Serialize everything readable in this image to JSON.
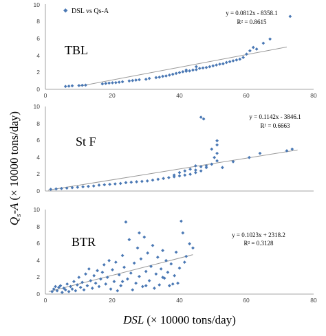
{
  "chart_data": {
    "type": "scatter",
    "xlabel_var": "DSL",
    "xlabel_unit": "(× 10000 tons/day)",
    "ylabel_var": "Q",
    "ylabel_sub": "s",
    "ylabel_rest": "-A",
    "ylabel_unit": "(× 10000 tons/day)",
    "marker_color": "#4a78b4",
    "line_color": "#999999",
    "legend_label": "DSL vs Qs-A",
    "panels": [
      {
        "label": "TBL",
        "equation": "y = 0.0812x - 8358.1",
        "r2": "R² = 0.8615",
        "xlim": [
          0,
          80
        ],
        "ylim": [
          0,
          10
        ],
        "xticks": [
          "0",
          "20",
          "40",
          "60",
          "80"
        ],
        "yticks": [
          "0",
          "2",
          "4",
          "6",
          "8",
          "10"
        ],
        "trend": [
          [
            10.5,
            0.4
          ],
          [
            72,
            5.05
          ]
        ],
        "points": [
          [
            6,
            0.35
          ],
          [
            7,
            0.38
          ],
          [
            8,
            0.42
          ],
          [
            10,
            0.45
          ],
          [
            11,
            0.48
          ],
          [
            12,
            0.5
          ],
          [
            17,
            0.65
          ],
          [
            18,
            0.7
          ],
          [
            19,
            0.75
          ],
          [
            20,
            0.78
          ],
          [
            21,
            0.8
          ],
          [
            22,
            0.85
          ],
          [
            23,
            0.9
          ],
          [
            25,
            1.0
          ],
          [
            26,
            1.05
          ],
          [
            27,
            1.1
          ],
          [
            28,
            1.15
          ],
          [
            30,
            1.2
          ],
          [
            31,
            1.3
          ],
          [
            33,
            1.4
          ],
          [
            34,
            1.45
          ],
          [
            35,
            1.55
          ],
          [
            36,
            1.6
          ],
          [
            38,
            1.8
          ],
          [
            39,
            1.9
          ],
          [
            40,
            2.0
          ],
          [
            41,
            2.1
          ],
          [
            42,
            2.15
          ],
          [
            43,
            2.2
          ],
          [
            44,
            2.3
          ],
          [
            45,
            2.35
          ],
          [
            46,
            2.5
          ],
          [
            47,
            2.55
          ],
          [
            48,
            2.6
          ],
          [
            49,
            2.7
          ],
          [
            50,
            2.8
          ],
          [
            51,
            2.9
          ],
          [
            52,
            3.0
          ],
          [
            53,
            3.05
          ],
          [
            54,
            3.2
          ],
          [
            55,
            3.3
          ],
          [
            56,
            3.4
          ],
          [
            57,
            3.5
          ],
          [
            58,
            3.6
          ],
          [
            59,
            3.8
          ],
          [
            60,
            4.2
          ],
          [
            61,
            4.6
          ],
          [
            62,
            5.0
          ],
          [
            63,
            4.8
          ],
          [
            65,
            5.5
          ],
          [
            67,
            6.0
          ],
          [
            73,
            8.7
          ],
          [
            45,
            2.7
          ],
          [
            42,
            2.3
          ],
          [
            37,
            1.7
          ]
        ]
      },
      {
        "label": "St F",
        "equation": "y = 0.1142x - 3846.1",
        "r2": "R² = 0.6663",
        "xlim": [
          0,
          50
        ],
        "ylim": [
          0,
          10
        ],
        "xticks": [],
        "yticks": [
          "0",
          "2",
          "4",
          "6",
          "8",
          "10"
        ],
        "trend": [
          [
            0.5,
            0.1
          ],
          [
            47,
            4.9
          ]
        ],
        "points": [
          [
            1,
            0.2
          ],
          [
            2,
            0.25
          ],
          [
            3,
            0.3
          ],
          [
            4,
            0.35
          ],
          [
            5,
            0.4
          ],
          [
            6,
            0.45
          ],
          [
            7,
            0.5
          ],
          [
            8,
            0.55
          ],
          [
            9,
            0.6
          ],
          [
            10,
            0.7
          ],
          [
            11,
            0.75
          ],
          [
            12,
            0.8
          ],
          [
            13,
            0.85
          ],
          [
            14,
            0.9
          ],
          [
            15,
            1.0
          ],
          [
            16,
            1.05
          ],
          [
            17,
            1.1
          ],
          [
            18,
            1.15
          ],
          [
            19,
            1.2
          ],
          [
            20,
            1.3
          ],
          [
            21,
            1.4
          ],
          [
            22,
            1.5
          ],
          [
            23,
            1.6
          ],
          [
            24,
            1.7
          ],
          [
            25,
            1.8
          ],
          [
            26,
            1.9
          ],
          [
            27,
            2.0
          ],
          [
            28,
            2.2
          ],
          [
            29,
            2.4
          ],
          [
            30,
            2.8
          ],
          [
            31,
            3.2
          ],
          [
            32,
            3.6
          ],
          [
            31.5,
            4.0
          ],
          [
            32,
            4.5
          ],
          [
            31,
            5.0
          ],
          [
            32,
            5.5
          ],
          [
            32,
            6.0
          ],
          [
            29,
            8.8
          ],
          [
            29.5,
            8.6
          ],
          [
            27,
            2.6
          ],
          [
            28,
            3.0
          ],
          [
            26,
            2.4
          ],
          [
            25,
            2.2
          ],
          [
            24,
            1.9
          ],
          [
            33,
            2.8
          ],
          [
            35,
            3.5
          ],
          [
            38,
            4.0
          ],
          [
            40,
            4.5
          ],
          [
            45,
            4.8
          ],
          [
            46,
            5.0
          ],
          [
            30,
            3.0
          ],
          [
            29,
            2.9
          ],
          [
            28,
            2.5
          ]
        ]
      },
      {
        "label": "BTR",
        "equation": "y = 0.1023x + 2318.2",
        "r2": "R² = 0.3128",
        "xlim": [
          0,
          80
        ],
        "ylim": [
          0,
          10
        ],
        "xticks": [
          "0",
          "20",
          "40",
          "60",
          "80"
        ],
        "yticks": [
          "0",
          "2",
          "4",
          "6",
          "8",
          "10"
        ],
        "trend": [
          [
            1,
            0.3
          ],
          [
            44,
            4.7
          ]
        ],
        "points": [
          [
            2,
            0.3
          ],
          [
            2.5,
            0.6
          ],
          [
            3,
            0.9
          ],
          [
            3.5,
            0.4
          ],
          [
            4,
            0.8
          ],
          [
            4.5,
            1.0
          ],
          [
            5,
            0.2
          ],
          [
            5.5,
            0.7
          ],
          [
            6,
            0.5
          ],
          [
            6.5,
            1.2
          ],
          [
            7,
            0.3
          ],
          [
            7.5,
            0.9
          ],
          [
            8,
            0.6
          ],
          [
            8.5,
            1.5
          ],
          [
            9,
            0.4
          ],
          [
            9.5,
            1.1
          ],
          [
            10,
            2.0
          ],
          [
            10.5,
            0.8
          ],
          [
            11,
            1.4
          ],
          [
            11.5,
            0.5
          ],
          [
            12,
            2.4
          ],
          [
            12.5,
            1.0
          ],
          [
            13,
            3.0
          ],
          [
            13.5,
            1.6
          ],
          [
            14,
            0.7
          ],
          [
            14.5,
            2.2
          ],
          [
            15,
            1.3
          ],
          [
            15.5,
            2.8
          ],
          [
            16,
            0.9
          ],
          [
            16.5,
            1.8
          ],
          [
            17,
            2.6
          ],
          [
            17.5,
            3.5
          ],
          [
            18,
            1.2
          ],
          [
            18.5,
            2.0
          ],
          [
            19,
            4.0
          ],
          [
            19.5,
            0.6
          ],
          [
            20,
            2.9
          ],
          [
            20.5,
            1.5
          ],
          [
            21,
            3.8
          ],
          [
            21.5,
            0.4
          ],
          [
            22,
            2.3
          ],
          [
            22.5,
            1.0
          ],
          [
            23,
            4.6
          ],
          [
            23.5,
            3.2
          ],
          [
            24,
            8.6
          ],
          [
            24.5,
            1.8
          ],
          [
            25,
            6.5
          ],
          [
            25.5,
            2.5
          ],
          [
            26,
            0.5
          ],
          [
            26.5,
            3.7
          ],
          [
            27,
            1.3
          ],
          [
            27.5,
            5.5
          ],
          [
            28,
            2.1
          ],
          [
            28.5,
            4.2
          ],
          [
            29,
            0.9
          ],
          [
            29.5,
            6.8
          ],
          [
            30,
            2.7
          ],
          [
            30.5,
            4.9
          ],
          [
            31,
            1.6
          ],
          [
            31.5,
            3.3
          ],
          [
            32,
            5.8
          ],
          [
            32.5,
            0.7
          ],
          [
            33,
            2.4
          ],
          [
            33.5,
            4.4
          ],
          [
            34,
            1.1
          ],
          [
            34.5,
            3.0
          ],
          [
            35,
            5.2
          ],
          [
            35.5,
            1.9
          ],
          [
            36,
            4.0
          ],
          [
            36.5,
            2.6
          ],
          [
            37,
            1.0
          ],
          [
            37.5,
            3.6
          ],
          [
            38,
            1.2
          ],
          [
            38.5,
            2.2
          ],
          [
            39,
            5.0
          ],
          [
            39.5,
            1.3
          ],
          [
            40,
            3.1
          ],
          [
            40.5,
            8.7
          ],
          [
            41,
            7.3
          ],
          [
            41.5,
            3.8
          ],
          [
            43,
            6.0
          ],
          [
            44,
            5.5
          ],
          [
            42,
            4.5
          ],
          [
            28,
            7.3
          ],
          [
            23,
            1.5
          ],
          [
            30,
            1.0
          ],
          [
            35,
            2.0
          ]
        ]
      }
    ]
  }
}
